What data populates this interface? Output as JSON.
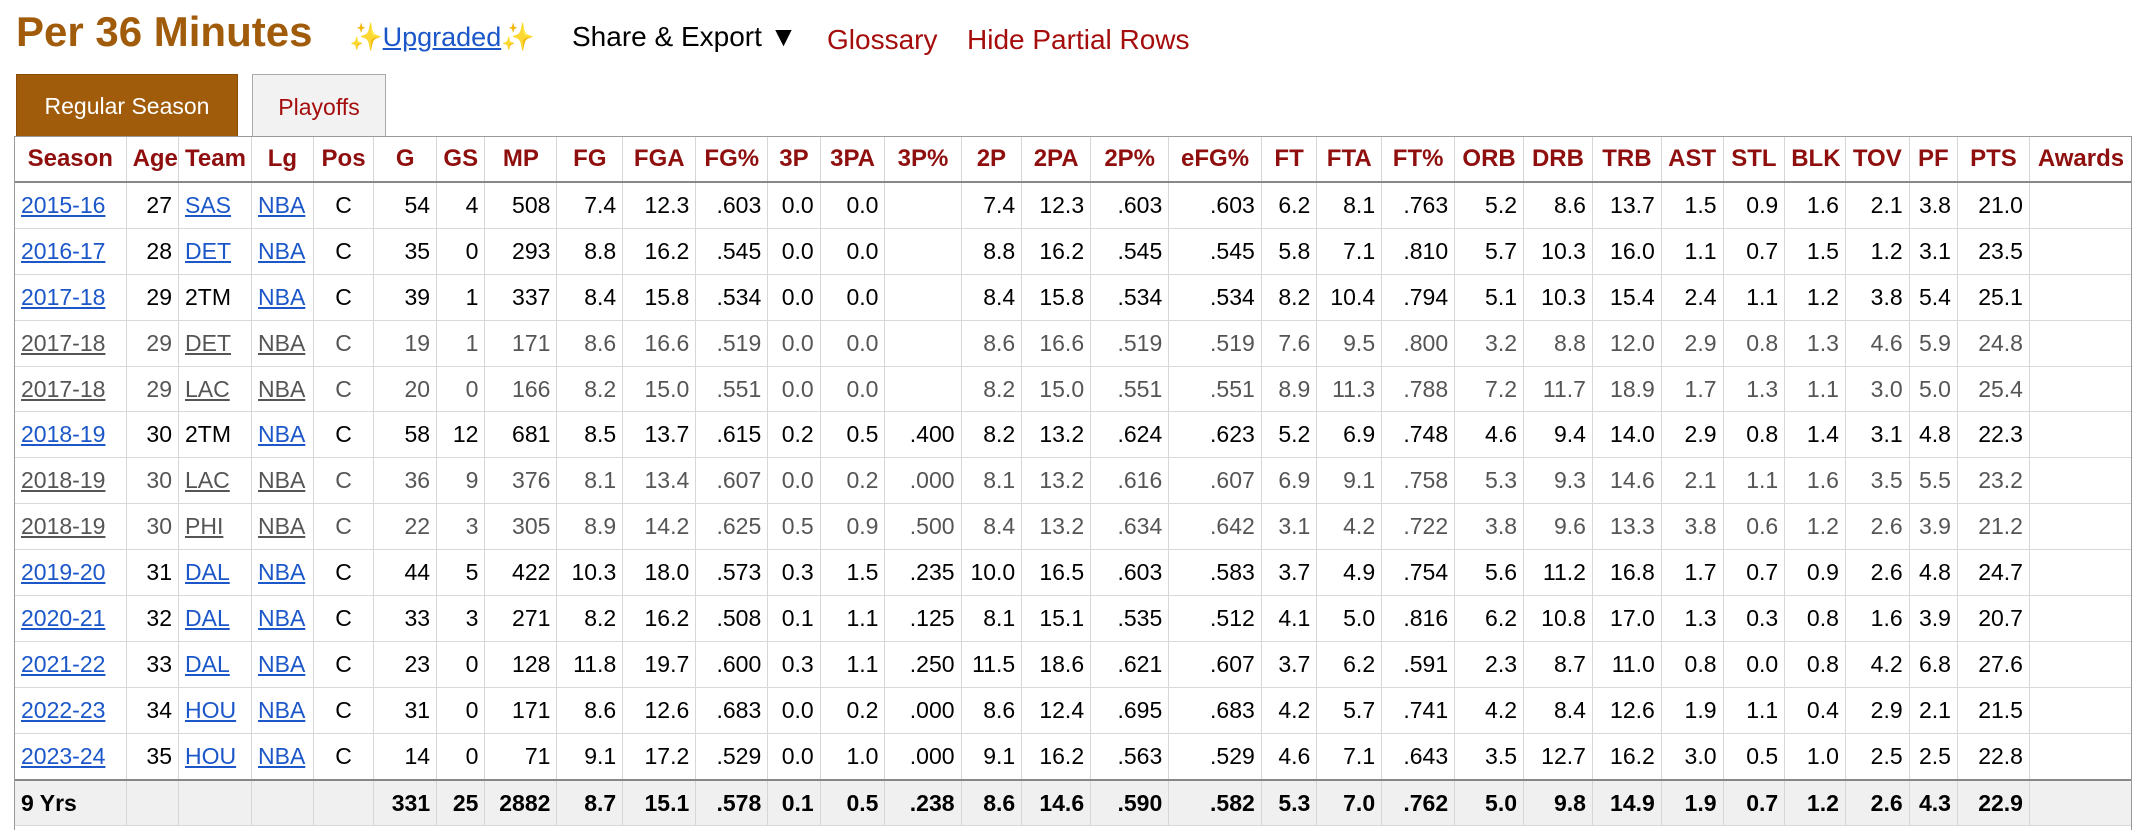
{
  "header": {
    "title": "Per 36 Minutes",
    "upgraded_left": "✨",
    "upgraded_label": "Upgraded",
    "upgraded_right": "✨",
    "share_label": "Share & Export ▼",
    "glossary_label": "Glossary",
    "hide_partial_label": "Hide Partial Rows"
  },
  "tabs": [
    {
      "label": "Regular Season",
      "active": true
    },
    {
      "label": "Playoffs",
      "active": false
    }
  ],
  "table": {
    "columns": [
      "Season",
      "Age",
      "Team",
      "Lg",
      "Pos",
      "G",
      "GS",
      "MP",
      "FG",
      "FGA",
      "FG%",
      "3P",
      "3PA",
      "3P%",
      "2P",
      "2PA",
      "2P%",
      "eFG%",
      "FT",
      "FTA",
      "FT%",
      "ORB",
      "DRB",
      "TRB",
      "AST",
      "STL",
      "BLK",
      "TOV",
      "PF",
      "PTS",
      "Awards"
    ],
    "rows": [
      {
        "partial": false,
        "cells": [
          "2015-16",
          "27",
          "SAS",
          "NBA",
          "C",
          "54",
          "4",
          "508",
          "7.4",
          "12.3",
          ".603",
          "0.0",
          "0.0",
          "",
          "7.4",
          "12.3",
          ".603",
          ".603",
          "6.2",
          "8.1",
          ".763",
          "5.2",
          "8.6",
          "13.7",
          "1.5",
          "0.9",
          "1.6",
          "2.1",
          "3.8",
          "21.0",
          ""
        ]
      },
      {
        "partial": false,
        "cells": [
          "2016-17",
          "28",
          "DET",
          "NBA",
          "C",
          "35",
          "0",
          "293",
          "8.8",
          "16.2",
          ".545",
          "0.0",
          "0.0",
          "",
          "8.8",
          "16.2",
          ".545",
          ".545",
          "5.8",
          "7.1",
          ".810",
          "5.7",
          "10.3",
          "16.0",
          "1.1",
          "0.7",
          "1.5",
          "1.2",
          "3.1",
          "23.5",
          ""
        ]
      },
      {
        "partial": false,
        "cells": [
          "2017-18",
          "29",
          "2TM",
          "NBA",
          "C",
          "39",
          "1",
          "337",
          "8.4",
          "15.8",
          ".534",
          "0.0",
          "0.0",
          "",
          "8.4",
          "15.8",
          ".534",
          ".534",
          "8.2",
          "10.4",
          ".794",
          "5.1",
          "10.3",
          "15.4",
          "2.4",
          "1.1",
          "1.2",
          "3.8",
          "5.4",
          "25.1",
          ""
        ]
      },
      {
        "partial": true,
        "cells": [
          "2017-18",
          "29",
          "DET",
          "NBA",
          "C",
          "19",
          "1",
          "171",
          "8.6",
          "16.6",
          ".519",
          "0.0",
          "0.0",
          "",
          "8.6",
          "16.6",
          ".519",
          ".519",
          "7.6",
          "9.5",
          ".800",
          "3.2",
          "8.8",
          "12.0",
          "2.9",
          "0.8",
          "1.3",
          "4.6",
          "5.9",
          "24.8",
          ""
        ]
      },
      {
        "partial": true,
        "cells": [
          "2017-18",
          "29",
          "LAC",
          "NBA",
          "C",
          "20",
          "0",
          "166",
          "8.2",
          "15.0",
          ".551",
          "0.0",
          "0.0",
          "",
          "8.2",
          "15.0",
          ".551",
          ".551",
          "8.9",
          "11.3",
          ".788",
          "7.2",
          "11.7",
          "18.9",
          "1.7",
          "1.3",
          "1.1",
          "3.0",
          "5.0",
          "25.4",
          ""
        ]
      },
      {
        "partial": false,
        "cells": [
          "2018-19",
          "30",
          "2TM",
          "NBA",
          "C",
          "58",
          "12",
          "681",
          "8.5",
          "13.7",
          ".615",
          "0.2",
          "0.5",
          ".400",
          "8.2",
          "13.2",
          ".624",
          ".623",
          "5.2",
          "6.9",
          ".748",
          "4.6",
          "9.4",
          "14.0",
          "2.9",
          "0.8",
          "1.4",
          "3.1",
          "4.8",
          "22.3",
          ""
        ]
      },
      {
        "partial": true,
        "cells": [
          "2018-19",
          "30",
          "LAC",
          "NBA",
          "C",
          "36",
          "9",
          "376",
          "8.1",
          "13.4",
          ".607",
          "0.0",
          "0.2",
          ".000",
          "8.1",
          "13.2",
          ".616",
          ".607",
          "6.9",
          "9.1",
          ".758",
          "5.3",
          "9.3",
          "14.6",
          "2.1",
          "1.1",
          "1.6",
          "3.5",
          "5.5",
          "23.2",
          ""
        ]
      },
      {
        "partial": true,
        "cells": [
          "2018-19",
          "30",
          "PHI",
          "NBA",
          "C",
          "22",
          "3",
          "305",
          "8.9",
          "14.2",
          ".625",
          "0.5",
          "0.9",
          ".500",
          "8.4",
          "13.2",
          ".634",
          ".642",
          "3.1",
          "4.2",
          ".722",
          "3.8",
          "9.6",
          "13.3",
          "3.8",
          "0.6",
          "1.2",
          "2.6",
          "3.9",
          "21.2",
          ""
        ]
      },
      {
        "partial": false,
        "cells": [
          "2019-20",
          "31",
          "DAL",
          "NBA",
          "C",
          "44",
          "5",
          "422",
          "10.3",
          "18.0",
          ".573",
          "0.3",
          "1.5",
          ".235",
          "10.0",
          "16.5",
          ".603",
          ".583",
          "3.7",
          "4.9",
          ".754",
          "5.6",
          "11.2",
          "16.8",
          "1.7",
          "0.7",
          "0.9",
          "2.6",
          "4.8",
          "24.7",
          ""
        ]
      },
      {
        "partial": false,
        "cells": [
          "2020-21",
          "32",
          "DAL",
          "NBA",
          "C",
          "33",
          "3",
          "271",
          "8.2",
          "16.2",
          ".508",
          "0.1",
          "1.1",
          ".125",
          "8.1",
          "15.1",
          ".535",
          ".512",
          "4.1",
          "5.0",
          ".816",
          "6.2",
          "10.8",
          "17.0",
          "1.3",
          "0.3",
          "0.8",
          "1.6",
          "3.9",
          "20.7",
          ""
        ]
      },
      {
        "partial": false,
        "cells": [
          "2021-22",
          "33",
          "DAL",
          "NBA",
          "C",
          "23",
          "0",
          "128",
          "11.8",
          "19.7",
          ".600",
          "0.3",
          "1.1",
          ".250",
          "11.5",
          "18.6",
          ".621",
          ".607",
          "3.7",
          "6.2",
          ".591",
          "2.3",
          "8.7",
          "11.0",
          "0.8",
          "0.0",
          "0.8",
          "4.2",
          "6.8",
          "27.6",
          ""
        ]
      },
      {
        "partial": false,
        "cells": [
          "2022-23",
          "34",
          "HOU",
          "NBA",
          "C",
          "31",
          "0",
          "171",
          "8.6",
          "12.6",
          ".683",
          "0.0",
          "0.2",
          ".000",
          "8.6",
          "12.4",
          ".695",
          ".683",
          "4.2",
          "5.7",
          ".741",
          "4.2",
          "8.4",
          "12.6",
          "1.9",
          "1.1",
          "0.4",
          "2.9",
          "2.1",
          "21.5",
          ""
        ]
      },
      {
        "partial": false,
        "cells": [
          "2023-24",
          "35",
          "HOU",
          "NBA",
          "C",
          "14",
          "0",
          "71",
          "9.1",
          "17.2",
          ".529",
          "0.0",
          "1.0",
          ".000",
          "9.1",
          "16.2",
          ".563",
          ".529",
          "4.6",
          "7.1",
          ".643",
          "3.5",
          "12.7",
          "16.2",
          "3.0",
          "0.5",
          "1.0",
          "2.5",
          "2.5",
          "22.8",
          ""
        ]
      }
    ],
    "total": [
      "9 Yrs",
      "",
      "",
      "",
      "",
      "331",
      "25",
      "2882",
      "8.7",
      "15.1",
      ".578",
      "0.1",
      "0.5",
      ".238",
      "8.6",
      "14.6",
      ".590",
      ".582",
      "5.3",
      "7.0",
      ".762",
      "5.0",
      "9.8",
      "14.9",
      "1.9",
      "0.7",
      "1.2",
      "2.6",
      "4.3",
      "22.9",
      ""
    ]
  },
  "colors": {
    "title": "#a05b0b",
    "header_text": "#8f0f0f",
    "link": "#1b57c9",
    "accent_red": "#a50c0c",
    "tab_active_bg": "#a05b0b"
  }
}
